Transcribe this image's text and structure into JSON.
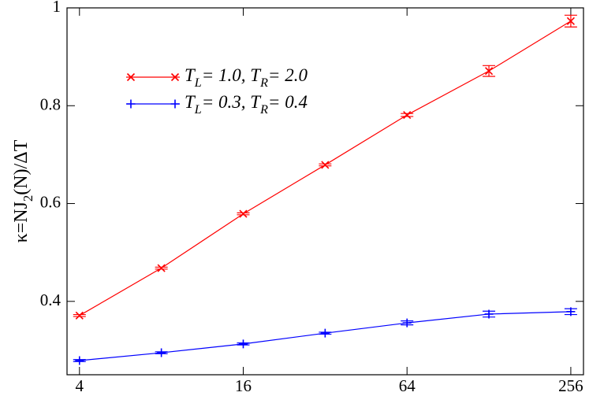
{
  "chart_data": {
    "type": "line",
    "y_label": "κ=NJ2(N)/ΔT",
    "x": [
      4,
      8,
      16,
      32,
      64,
      128,
      256
    ],
    "xscale": "log",
    "xlim": [
      3.6,
      285
    ],
    "xticks": [
      4,
      16,
      64,
      256
    ],
    "ylim": [
      0.25,
      1
    ],
    "yticks": [
      0.4,
      0.6,
      0.8,
      1
    ],
    "grid": false,
    "legend": "upper left",
    "series": [
      {
        "name": "TL= 1.0, TR= 2.0",
        "color": "#ff0000",
        "marker": "x",
        "values": [
          0.371,
          0.468,
          0.579,
          0.679,
          0.781,
          0.871,
          0.973
        ],
        "errors": [
          0.002,
          0.002,
          0.002,
          0.002,
          0.003,
          0.011,
          0.012
        ]
      },
      {
        "name": "TL= 0.3, TR= 0.4",
        "color": "#0000ff",
        "marker": "+",
        "values": [
          0.279,
          0.295,
          0.313,
          0.335,
          0.356,
          0.374,
          0.379
        ],
        "errors": [
          0.002,
          0.002,
          0.002,
          0.002,
          0.004,
          0.006,
          0.006
        ]
      }
    ]
  }
}
